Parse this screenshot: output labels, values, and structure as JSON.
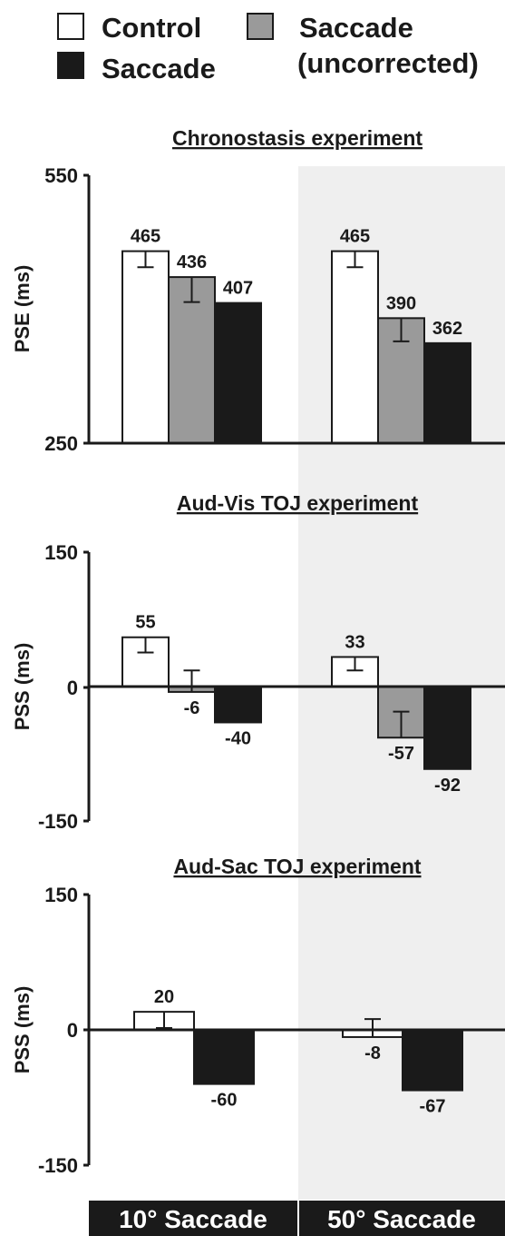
{
  "legend": [
    {
      "label": "Control",
      "color": "#ffffff"
    },
    {
      "label": "Saccade",
      "color": "#9a9a9a",
      "sublabel": "(uncorrected)"
    },
    {
      "label": "Saccade",
      "color": "#1a1a1a"
    }
  ],
  "conditions": [
    "10° Saccade",
    "50° Saccade"
  ],
  "colors": {
    "control": "#ffffff",
    "uncorrected": "#9a9a9a",
    "saccade": "#1a1a1a",
    "shade": "#efefef",
    "axis": "#1a1a1a"
  },
  "chart_data": [
    {
      "type": "bar",
      "title": "Chronostasis experiment",
      "ylabel": "PSE (ms)",
      "ylim": [
        250,
        550
      ],
      "yticks": [
        "550",
        "250"
      ],
      "categories": [
        "10° Saccade",
        "50° Saccade"
      ],
      "series": [
        {
          "name": "Control",
          "values": [
            465,
            465
          ],
          "labels": [
            "465",
            "465"
          ],
          "err_lo": [
            447,
            447
          ],
          "err_hi": [
            465,
            465
          ]
        },
        {
          "name": "Saccade (uncorrected)",
          "values": [
            436,
            390
          ],
          "labels": [
            "436",
            "390"
          ],
          "err_lo": [
            408,
            364
          ],
          "err_hi": [
            436,
            390
          ]
        },
        {
          "name": "Saccade",
          "values": [
            407,
            362
          ],
          "labels": [
            "407",
            "362"
          ],
          "err_lo": [
            382,
            336
          ],
          "err_hi": [
            407,
            362
          ]
        }
      ]
    },
    {
      "type": "bar",
      "title": "Aud-Vis TOJ experiment",
      "ylabel": "PSS (ms)",
      "ylim": [
        -150,
        150
      ],
      "yticks": [
        "150",
        "0",
        "-150"
      ],
      "categories": [
        "10° Saccade",
        "50° Saccade"
      ],
      "series": [
        {
          "name": "Control",
          "values": [
            55,
            33
          ],
          "labels": [
            "55",
            "33"
          ],
          "err_lo": [
            38,
            18
          ],
          "err_hi": [
            55,
            33
          ]
        },
        {
          "name": "Saccade (uncorrected)",
          "values": [
            -6,
            -57
          ],
          "labels": [
            "-6",
            "-57"
          ],
          "err_lo": [
            -6,
            -57
          ],
          "err_hi": [
            18,
            -28
          ]
        },
        {
          "name": "Saccade",
          "values": [
            -40,
            -92
          ],
          "labels": [
            "-40",
            "-92"
          ],
          "err_lo": [
            -40,
            -92
          ],
          "err_hi": [
            -14,
            -61
          ]
        }
      ]
    },
    {
      "type": "bar",
      "title": "Aud-Sac TOJ experiment",
      "ylabel": "PSS (ms)",
      "ylim": [
        -150,
        150
      ],
      "yticks": [
        "150",
        "0",
        "-150"
      ],
      "categories": [
        "10° Saccade",
        "50° Saccade"
      ],
      "series": [
        {
          "name": "Control",
          "values": [
            20,
            -8
          ],
          "labels": [
            "20",
            "-8"
          ],
          "err_lo": [
            2,
            -8
          ],
          "err_hi": [
            20,
            12
          ]
        },
        {
          "name": "Saccade",
          "values": [
            -60,
            -67
          ],
          "labels": [
            "-60",
            "-67"
          ],
          "err_lo": [
            -60,
            -67
          ],
          "err_hi": [
            -44,
            -51
          ]
        }
      ]
    }
  ]
}
